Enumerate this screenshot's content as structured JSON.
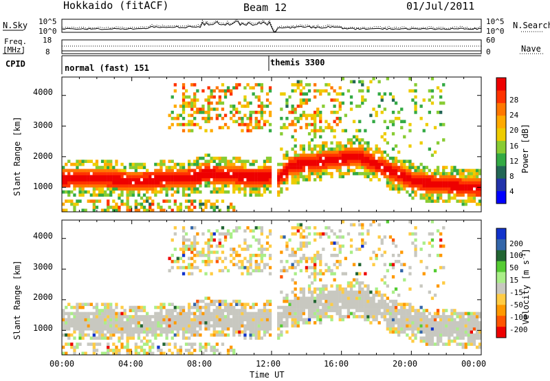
{
  "header": {
    "station": "Hokkaido (fitACF)",
    "beam": "Beam 12",
    "date": "01/Jul/2011"
  },
  "top_panels": {
    "nsky_label": "N.Sky",
    "nsearch_label": "N.Search",
    "noise_ticks": [
      "10^5",
      "10^0"
    ],
    "freq_label_1": "Freq.",
    "freq_label_2": "[MHz]",
    "freq_ticks": [
      "18",
      "8"
    ],
    "nave_label": "Nave",
    "nave_ticks": [
      "60",
      "0"
    ],
    "cpid_label": "CPID",
    "cpid_modes": [
      {
        "name": "normal (fast) 151",
        "start_hour": 0.0
      },
      {
        "name": "themis 3300",
        "start_hour": 12.25
      }
    ]
  },
  "chart_data": [
    {
      "type": "heatmap",
      "name": "power",
      "ylabel": "Slant Range [km]",
      "y_ticks": [
        1000,
        2000,
        3000,
        4000
      ],
      "ylim": [
        200,
        4600
      ],
      "xlim": [
        0,
        24
      ],
      "colorbar_label": "Power [dB]",
      "colorbar_ticks": [
        "4",
        "8",
        "12",
        "16",
        "20",
        "24",
        "28"
      ],
      "colorbar_range": [
        0,
        30
      ],
      "colors": [
        "#0000ff",
        "#2233aa",
        "#226655",
        "#33aa44",
        "#88cc33",
        "#eecc00",
        "#ffaa00",
        "#ff7700",
        "#ff3300",
        "#ee0000"
      ]
    },
    {
      "type": "heatmap",
      "name": "velocity",
      "ylabel": "Slant Range [km]",
      "y_ticks": [
        1000,
        2000,
        3000,
        4000
      ],
      "ylim": [
        200,
        4600
      ],
      "xlim": [
        0,
        24
      ],
      "colorbar_label": "Velocity [m s-1]",
      "colorbar_ticks": [
        "200",
        "100",
        "50",
        "15",
        "-15",
        "-50",
        "-100",
        "-200"
      ],
      "colors": [
        "#1133cc",
        "#3366aa",
        "#226633",
        "#55cc33",
        "#aaee88",
        "#c8c8c0",
        "#ffcc44",
        "#ff9900",
        "#ff5500",
        "#ee0000"
      ],
      "x_ticks": [
        "00:00",
        "04:00",
        "08:00",
        "12:00",
        "16:00",
        "20:00",
        "00:00"
      ],
      "xlabel": "Time UT"
    }
  ]
}
